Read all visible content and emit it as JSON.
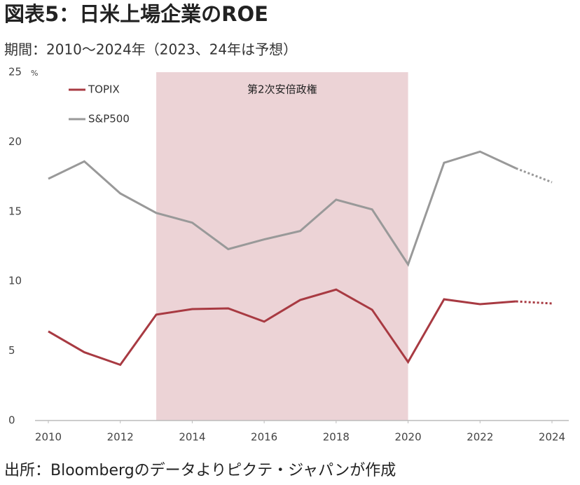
{
  "chart_data": {
    "type": "line",
    "title": "図表5：日米上場企業のROE",
    "subtitle": "期間：2010～2024年（2023、24年は予想）",
    "source": "出所：Bloombergのデータよりピクテ・ジャパンが作成",
    "y_unit": "%",
    "x": [
      2010,
      2011,
      2012,
      2013,
      2014,
      2015,
      2016,
      2017,
      2018,
      2019,
      2020,
      2021,
      2022,
      2023,
      2024
    ],
    "series": [
      {
        "name": "TOPIX",
        "color": "#a83a42",
        "values": [
          6.4,
          4.9,
          4.0,
          7.6,
          8.0,
          8.05,
          7.1,
          8.65,
          9.4,
          7.95,
          4.2,
          8.7,
          8.35,
          8.55,
          8.4
        ]
      },
      {
        "name": "S&P500",
        "color": "#999999",
        "values": [
          17.35,
          18.6,
          16.3,
          14.9,
          14.2,
          12.3,
          13.0,
          13.6,
          15.85,
          15.15,
          11.2,
          18.5,
          19.3,
          18.1,
          17.1
        ]
      }
    ],
    "forecast_from": 2023,
    "shade": {
      "label": "第2次安倍政権",
      "x": [
        2013,
        2020
      ],
      "color": "#ecd3d6"
    },
    "xlim": [
      2010,
      2024
    ],
    "xticks": [
      2010,
      2012,
      2014,
      2016,
      2018,
      2020,
      2022,
      2024
    ],
    "ylim": [
      0,
      25
    ],
    "yticks": [
      0,
      5,
      10,
      15,
      20,
      25
    ],
    "legend": "top-left"
  }
}
